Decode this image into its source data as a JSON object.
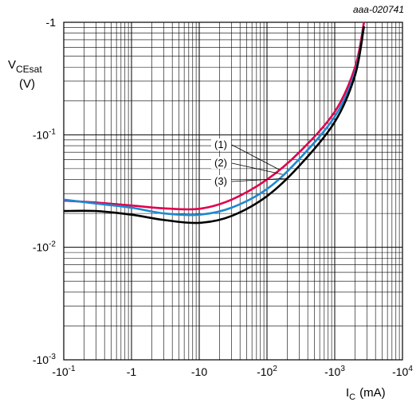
{
  "chart_data": {
    "type": "line",
    "title": "",
    "watermark": "aaa-020741",
    "xlabel": "I",
    "xlabel_sub": "C",
    "xlabel_unit": "(mA)",
    "ylabel": "V",
    "ylabel_sub": "CEsat",
    "ylabel_unit": "(V)",
    "x_scale": "log",
    "y_scale": "log",
    "xlim": [
      -0.1,
      -10000
    ],
    "ylim": [
      -0.001,
      -1
    ],
    "grid": true,
    "x_ticks": [
      {
        "value": -0.1,
        "base": "-10",
        "exp": "-1"
      },
      {
        "value": -1,
        "base": "-1",
        "exp": ""
      },
      {
        "value": -10,
        "base": "-10",
        "exp": ""
      },
      {
        "value": -100,
        "base": "-10",
        "exp": "2"
      },
      {
        "value": -1000,
        "base": "-10",
        "exp": "3"
      },
      {
        "value": -10000,
        "base": "-10",
        "exp": "4"
      }
    ],
    "y_ticks": [
      {
        "value": -0.001,
        "base": "-10",
        "exp": "-3"
      },
      {
        "value": -0.01,
        "base": "-10",
        "exp": "-2"
      },
      {
        "value": -0.1,
        "base": "-10",
        "exp": "-1"
      },
      {
        "value": -1,
        "base": "-1",
        "exp": ""
      }
    ],
    "series": [
      {
        "label": "(1)",
        "color": "#e0004d",
        "x": [
          -0.1,
          -0.3,
          -1,
          -3,
          -10,
          -30,
          -100,
          -300,
          -1000,
          -2000,
          -2700
        ],
        "y": [
          -0.026,
          -0.025,
          -0.0235,
          -0.0222,
          -0.022,
          -0.0265,
          -0.04,
          -0.07,
          -0.16,
          -0.4,
          -1.0
        ]
      },
      {
        "label": "(2)",
        "color": "#1e88d0",
        "x": [
          -0.1,
          -0.3,
          -1,
          -3,
          -10,
          -30,
          -100,
          -300,
          -1000,
          -2000,
          -2700
        ],
        "y": [
          -0.0265,
          -0.0245,
          -0.0225,
          -0.02,
          -0.0195,
          -0.0225,
          -0.033,
          -0.061,
          -0.145,
          -0.36,
          -0.92
        ]
      },
      {
        "label": "(3)",
        "color": "#000000",
        "x": [
          -0.1,
          -0.3,
          -1,
          -3,
          -10,
          -30,
          -100,
          -300,
          -1000,
          -2000,
          -2700
        ],
        "y": [
          -0.021,
          -0.021,
          -0.0195,
          -0.0175,
          -0.0165,
          -0.019,
          -0.0285,
          -0.053,
          -0.13,
          -0.34,
          -0.92
        ]
      }
    ]
  }
}
